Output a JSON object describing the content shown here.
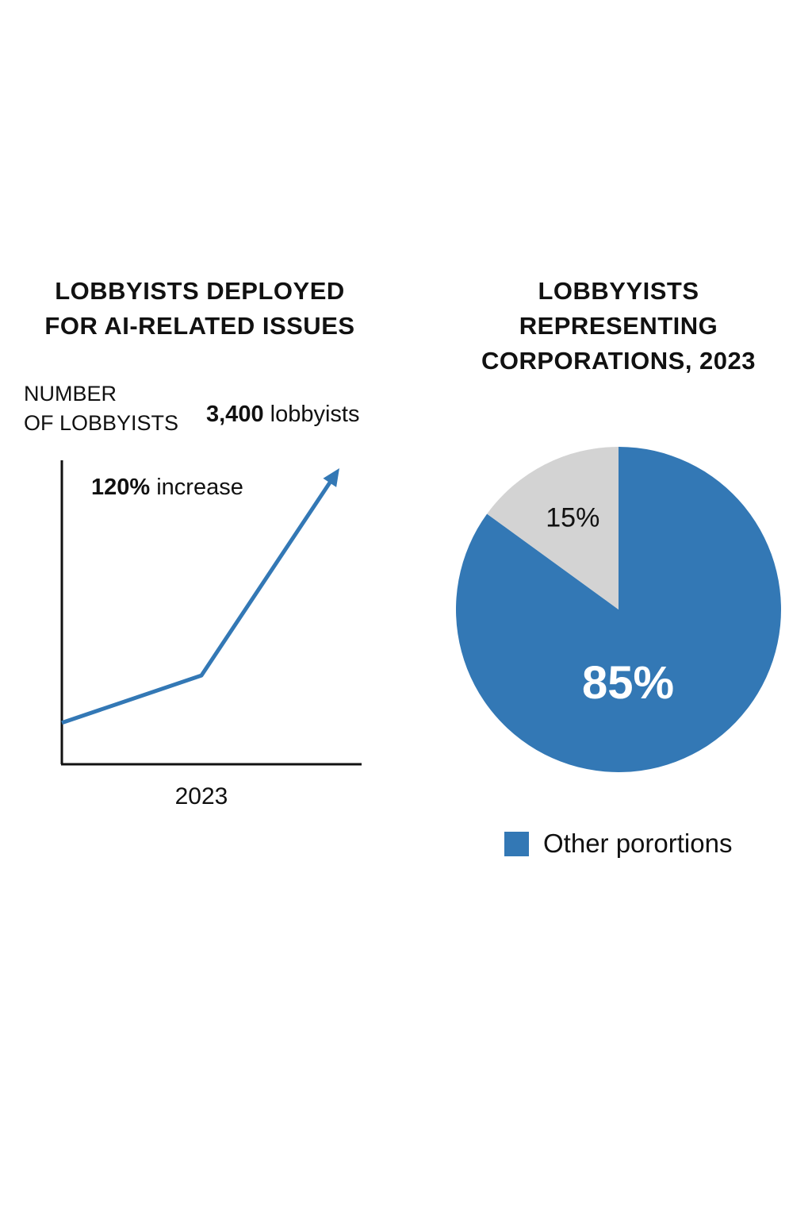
{
  "colors": {
    "accent": "#3378b5",
    "secondary": "#d3d3d3",
    "axis": "#111111"
  },
  "chart_data": [
    {
      "type": "line",
      "title_lines": [
        "LOBBYISTS DEPLOYED",
        "FOR AI-RELATED ISSUES"
      ],
      "ylabel_lines": [
        "NUMBER",
        "OF LOBBYISTS"
      ],
      "xlabel": "",
      "x_tick_labels": [
        "2023"
      ],
      "grid": false,
      "series": [
        {
          "values": [
            0.14,
            0.3,
            1.0
          ]
        }
      ],
      "annotations": {
        "peak_value": "3,400",
        "peak_unit": "lobbyists",
        "increase_value": "120%",
        "increase_text": "increase"
      }
    },
    {
      "type": "pie",
      "title_lines": [
        "LOBBYYISTS",
        "REPRESENTING",
        "CORPORATIONS, 2023"
      ],
      "slices": [
        {
          "label": "85%",
          "value": 85,
          "color": "#3378b5"
        },
        {
          "label": "15%",
          "value": 15,
          "color": "#d3d3d3"
        }
      ],
      "legend": [
        {
          "label": "Other porortions",
          "color": "#3378b5"
        }
      ],
      "legend_position": "bottom"
    }
  ]
}
